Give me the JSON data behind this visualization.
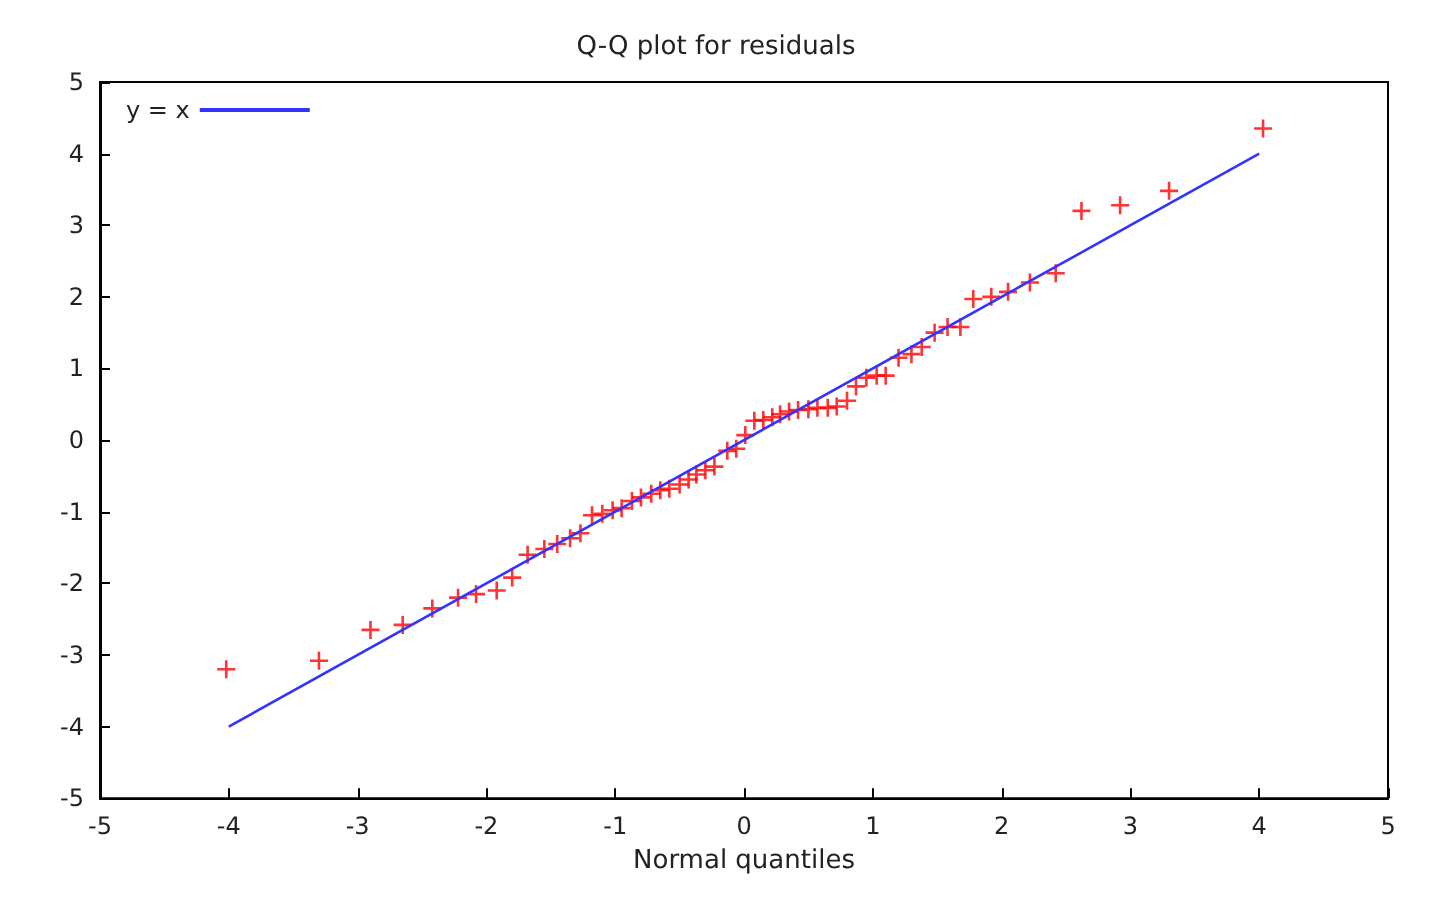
{
  "chart_data": {
    "type": "scatter",
    "title": "Q-Q plot for residuals",
    "xlabel": "Normal quantiles",
    "xlim": [
      -5,
      5
    ],
    "ylim": [
      -5,
      5
    ],
    "xticks": [
      -5,
      -4,
      -3,
      -2,
      -1,
      0,
      1,
      2,
      3,
      4,
      5
    ],
    "yticks": [
      -5,
      -4,
      -3,
      -2,
      -1,
      0,
      1,
      2,
      3,
      4,
      5
    ],
    "grid": false,
    "legend": "top left",
    "series": [
      {
        "marker": "cross",
        "color": "#ff0000",
        "x": [
          -4.02,
          -3.3,
          -2.9,
          -2.65,
          -2.42,
          -2.22,
          -2.08,
          -1.92,
          -1.8,
          -1.68,
          -1.55,
          -1.45,
          -1.35,
          -1.27,
          -1.18,
          -1.1,
          -1.02,
          -0.95,
          -0.87,
          -0.8,
          -0.72,
          -0.65,
          -0.58,
          -0.5,
          -0.43,
          -0.37,
          -0.3,
          -0.23,
          -0.13,
          -0.06,
          0.01,
          0.08,
          0.15,
          0.22,
          0.28,
          0.35,
          0.42,
          0.5,
          0.57,
          0.65,
          0.72,
          0.8,
          0.87,
          0.95,
          1.03,
          1.1,
          1.2,
          1.3,
          1.38,
          1.48,
          1.58,
          1.68,
          1.78,
          1.92,
          2.05,
          2.22,
          2.42,
          2.62,
          2.92,
          3.3,
          4.03
        ],
        "values": [
          -3.2,
          -3.08,
          -2.65,
          -2.58,
          -2.35,
          -2.2,
          -2.15,
          -2.1,
          -1.92,
          -1.6,
          -1.52,
          -1.45,
          -1.37,
          -1.3,
          -1.05,
          -1.03,
          -0.98,
          -0.95,
          -0.85,
          -0.8,
          -0.75,
          -0.7,
          -0.68,
          -0.62,
          -0.55,
          -0.48,
          -0.42,
          -0.37,
          -0.15,
          -0.12,
          0.07,
          0.27,
          0.28,
          0.32,
          0.36,
          0.4,
          0.42,
          0.43,
          0.45,
          0.45,
          0.47,
          0.55,
          0.75,
          0.87,
          0.9,
          0.9,
          1.15,
          1.2,
          1.3,
          1.5,
          1.58,
          1.58,
          1.97,
          2.0,
          2.07,
          2.2,
          2.33,
          3.2,
          3.28,
          3.48,
          4.35
        ]
      },
      {
        "type": "line",
        "name": "y = x",
        "color": "#3333ff",
        "x": [
          -4,
          4
        ],
        "values": [
          -4,
          4
        ],
        "line_style": "solid",
        "marker": "none"
      }
    ]
  }
}
